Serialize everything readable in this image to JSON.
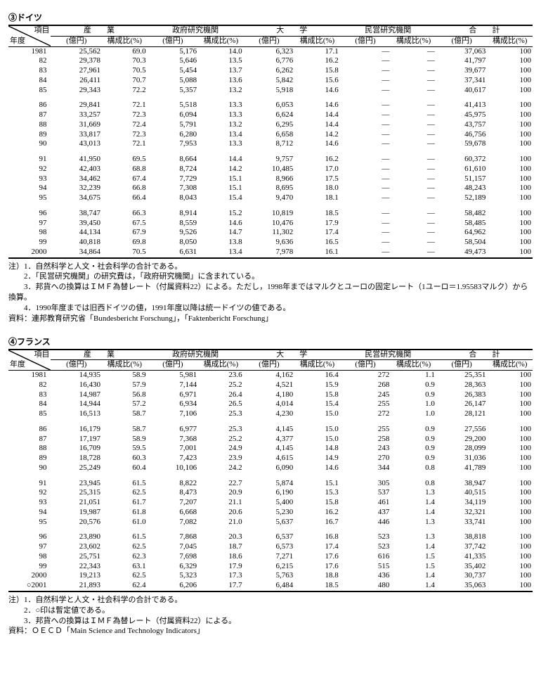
{
  "header": {
    "diag_top": "項目",
    "diag_bottom": "年度",
    "groups": [
      "産　　業",
      "政府研究機関",
      "大　　学",
      "民営研究機関",
      "合　　計"
    ],
    "sub_value": "(億円)",
    "sub_ratio": "構成比(%)"
  },
  "germany": {
    "title": "③ドイツ",
    "rows": [
      [
        "1981",
        "25,562",
        "69.0",
        "5,176",
        "14.0",
        "6,323",
        "17.1",
        "—",
        "—",
        "37,063",
        "100"
      ],
      [
        "82",
        "29,378",
        "70.3",
        "5,646",
        "13.5",
        "6,776",
        "16.2",
        "—",
        "—",
        "41,797",
        "100"
      ],
      [
        "83",
        "27,961",
        "70.5",
        "5,454",
        "13.7",
        "6,262",
        "15.8",
        "—",
        "—",
        "39,677",
        "100"
      ],
      [
        "84",
        "26,411",
        "70.7",
        "5,088",
        "13.6",
        "5,842",
        "15.6",
        "—",
        "—",
        "37,341",
        "100"
      ],
      [
        "85",
        "29,343",
        "72.2",
        "5,357",
        "13.2",
        "5,918",
        "14.6",
        "—",
        "—",
        "40,617",
        "100"
      ],
      "GAP",
      [
        "86",
        "29,841",
        "72.1",
        "5,518",
        "13.3",
        "6,053",
        "14.6",
        "—",
        "—",
        "41,413",
        "100"
      ],
      [
        "87",
        "33,257",
        "72.3",
        "6,094",
        "13.3",
        "6,624",
        "14.4",
        "—",
        "—",
        "45,975",
        "100"
      ],
      [
        "88",
        "31,669",
        "72.4",
        "5,791",
        "13.2",
        "6,295",
        "14.4",
        "—",
        "—",
        "43,757",
        "100"
      ],
      [
        "89",
        "33,817",
        "72.3",
        "6,280",
        "13.4",
        "6,658",
        "14.2",
        "—",
        "—",
        "46,756",
        "100"
      ],
      [
        "90",
        "43,013",
        "72.1",
        "7,953",
        "13.3",
        "8,712",
        "14.6",
        "—",
        "—",
        "59,678",
        "100"
      ],
      "GAP",
      [
        "91",
        "41,950",
        "69.5",
        "8,664",
        "14.4",
        "9,757",
        "16.2",
        "—",
        "—",
        "60,372",
        "100"
      ],
      [
        "92",
        "42,403",
        "68.8",
        "8,724",
        "14.2",
        "10,485",
        "17.0",
        "—",
        "—",
        "61,610",
        "100"
      ],
      [
        "93",
        "34,462",
        "67.4",
        "7,729",
        "15.1",
        "8,966",
        "17.5",
        "—",
        "—",
        "51,157",
        "100"
      ],
      [
        "94",
        "32,239",
        "66.8",
        "7,308",
        "15.1",
        "8,695",
        "18.0",
        "—",
        "—",
        "48,243",
        "100"
      ],
      [
        "95",
        "34,675",
        "66.4",
        "8,043",
        "15.4",
        "9,470",
        "18.1",
        "—",
        "—",
        "52,189",
        "100"
      ],
      "GAP",
      [
        "96",
        "38,747",
        "66.3",
        "8,914",
        "15.2",
        "10,819",
        "18.5",
        "—",
        "—",
        "58,482",
        "100"
      ],
      [
        "97",
        "39,450",
        "67.5",
        "8,559",
        "14.6",
        "10,476",
        "17.9",
        "—",
        "—",
        "58,485",
        "100"
      ],
      [
        "98",
        "44,134",
        "67.9",
        "9,526",
        "14.7",
        "11,302",
        "17.4",
        "—",
        "—",
        "64,962",
        "100"
      ],
      [
        "99",
        "40,818",
        "69.8",
        "8,050",
        "13.8",
        "9,636",
        "16.5",
        "—",
        "—",
        "58,504",
        "100"
      ],
      [
        "2000",
        "34,864",
        "70.5",
        "6,631",
        "13.4",
        "7,978",
        "16.1",
        "—",
        "—",
        "49,473",
        "100"
      ]
    ],
    "notes": [
      "注）1．自然科学と人文・社会科学の合計である。",
      "　　2．「民営研究機関」の研究費は，「政府研究機関」に含まれている。",
      "　　3．邦貨への換算はＩＭＦ為替レート（付属資料22）による。ただし，1998年まではマルクとユーロの固定レート（1ユーロ＝1.95583マルク）から換算。",
      "　　4．1990年度までは旧西ドイツの値，1991年度以降は統一ドイツの値である。",
      "資料：連邦教育研究省「Bundesbericht Forschung」，「Faktenbericht Forschung」"
    ]
  },
  "france": {
    "title": "④フランス",
    "rows": [
      [
        "1981",
        "14,935",
        "58.9",
        "5,981",
        "23.6",
        "4,162",
        "16.4",
        "272",
        "1.1",
        "25,351",
        "100"
      ],
      [
        "82",
        "16,430",
        "57.9",
        "7,144",
        "25.2",
        "4,521",
        "15.9",
        "268",
        "0.9",
        "28,363",
        "100"
      ],
      [
        "83",
        "14,987",
        "56.8",
        "6,971",
        "26.4",
        "4,180",
        "15.8",
        "245",
        "0.9",
        "26,383",
        "100"
      ],
      [
        "84",
        "14,944",
        "57.2",
        "6,934",
        "26.5",
        "4,014",
        "15.4",
        "255",
        "1.0",
        "26,147",
        "100"
      ],
      [
        "85",
        "16,513",
        "58.7",
        "7,106",
        "25.3",
        "4,230",
        "15.0",
        "272",
        "1.0",
        "28,121",
        "100"
      ],
      "GAP",
      [
        "86",
        "16,179",
        "58.7",
        "6,977",
        "25.3",
        "4,145",
        "15.0",
        "255",
        "0.9",
        "27,556",
        "100"
      ],
      [
        "87",
        "17,197",
        "58.9",
        "7,368",
        "25.2",
        "4,377",
        "15.0",
        "258",
        "0.9",
        "29,200",
        "100"
      ],
      [
        "88",
        "16,709",
        "59.5",
        "7,001",
        "24.9",
        "4,145",
        "14.8",
        "243",
        "0.9",
        "28,099",
        "100"
      ],
      [
        "89",
        "18,728",
        "60.3",
        "7,423",
        "23.9",
        "4,615",
        "14.9",
        "270",
        "0.9",
        "31,036",
        "100"
      ],
      [
        "90",
        "25,249",
        "60.4",
        "10,106",
        "24.2",
        "6,090",
        "14.6",
        "344",
        "0.8",
        "41,789",
        "100"
      ],
      "GAP",
      [
        "91",
        "23,945",
        "61.5",
        "8,822",
        "22.7",
        "5,874",
        "15.1",
        "305",
        "0.8",
        "38,947",
        "100"
      ],
      [
        "92",
        "25,315",
        "62.5",
        "8,473",
        "20.9",
        "6,190",
        "15.3",
        "537",
        "1.3",
        "40,515",
        "100"
      ],
      [
        "93",
        "21,051",
        "61.7",
        "7,207",
        "21.1",
        "5,400",
        "15.8",
        "461",
        "1.4",
        "34,119",
        "100"
      ],
      [
        "94",
        "19,987",
        "61.8",
        "6,668",
        "20.6",
        "5,230",
        "16.2",
        "437",
        "1.4",
        "32,321",
        "100"
      ],
      [
        "95",
        "20,576",
        "61.0",
        "7,082",
        "21.0",
        "5,637",
        "16.7",
        "446",
        "1.3",
        "33,741",
        "100"
      ],
      "GAP",
      [
        "96",
        "23,890",
        "61.5",
        "7,868",
        "20.3",
        "6,537",
        "16.8",
        "523",
        "1.3",
        "38,818",
        "100"
      ],
      [
        "97",
        "23,602",
        "62.5",
        "7,045",
        "18.7",
        "6,573",
        "17.4",
        "523",
        "1.4",
        "37,742",
        "100"
      ],
      [
        "98",
        "25,751",
        "62.3",
        "7,698",
        "18.6",
        "7,271",
        "17.6",
        "616",
        "1.5",
        "41,335",
        "100"
      ],
      [
        "99",
        "22,343",
        "63.1",
        "6,329",
        "17.9",
        "6,215",
        "17.6",
        "515",
        "1.5",
        "35,402",
        "100"
      ],
      [
        "2000",
        "19,213",
        "62.5",
        "5,323",
        "17.3",
        "5,763",
        "18.8",
        "436",
        "1.4",
        "30,737",
        "100"
      ],
      [
        "○2001",
        "21,893",
        "62.4",
        "6,206",
        "17.7",
        "6,484",
        "18.5",
        "480",
        "1.4",
        "35,063",
        "100"
      ]
    ],
    "notes": [
      "注）1．自然科学と人文・社会科学の合計である。",
      "　　2．○印は暫定値である。",
      "　　3．邦貨への換算はＩＭＦ為替レート（付属資料22）による。",
      "資料：ＯＥＣＤ「Main Science and Technology Indicators」"
    ]
  },
  "colwidths": [
    "7.5%",
    "9%",
    "8%",
    "9%",
    "8%",
    "9%",
    "8%",
    "9%",
    "8%",
    "9%",
    "8%"
  ]
}
